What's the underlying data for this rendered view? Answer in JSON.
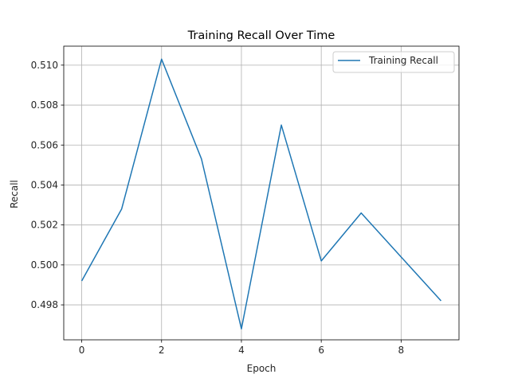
{
  "chart_data": {
    "type": "line",
    "title": "Training Recall Over Time",
    "xlabel": "Epoch",
    "ylabel": "Recall",
    "x": [
      0,
      1,
      2,
      3,
      4,
      5,
      6,
      7,
      8,
      9
    ],
    "series": [
      {
        "name": "Training Recall",
        "color": "#1f77b4",
        "values": [
          0.4992,
          0.5028,
          0.5103,
          0.5053,
          0.4968,
          0.507,
          0.5002,
          0.5026,
          0.5004,
          0.4982
        ]
      }
    ],
    "xlim": [
      -0.45,
      9.45
    ],
    "ylim": [
      0.49625,
      0.51095
    ],
    "xticks": [
      0,
      2,
      4,
      6,
      8
    ],
    "xtick_labels": [
      "0",
      "2",
      "4",
      "6",
      "8"
    ],
    "yticks": [
      0.498,
      0.5,
      0.502,
      0.504,
      0.506,
      0.508,
      0.51
    ],
    "ytick_labels": [
      "0.498",
      "0.500",
      "0.502",
      "0.504",
      "0.506",
      "0.508",
      "0.510"
    ],
    "grid": true,
    "legend_position": "upper-right"
  }
}
